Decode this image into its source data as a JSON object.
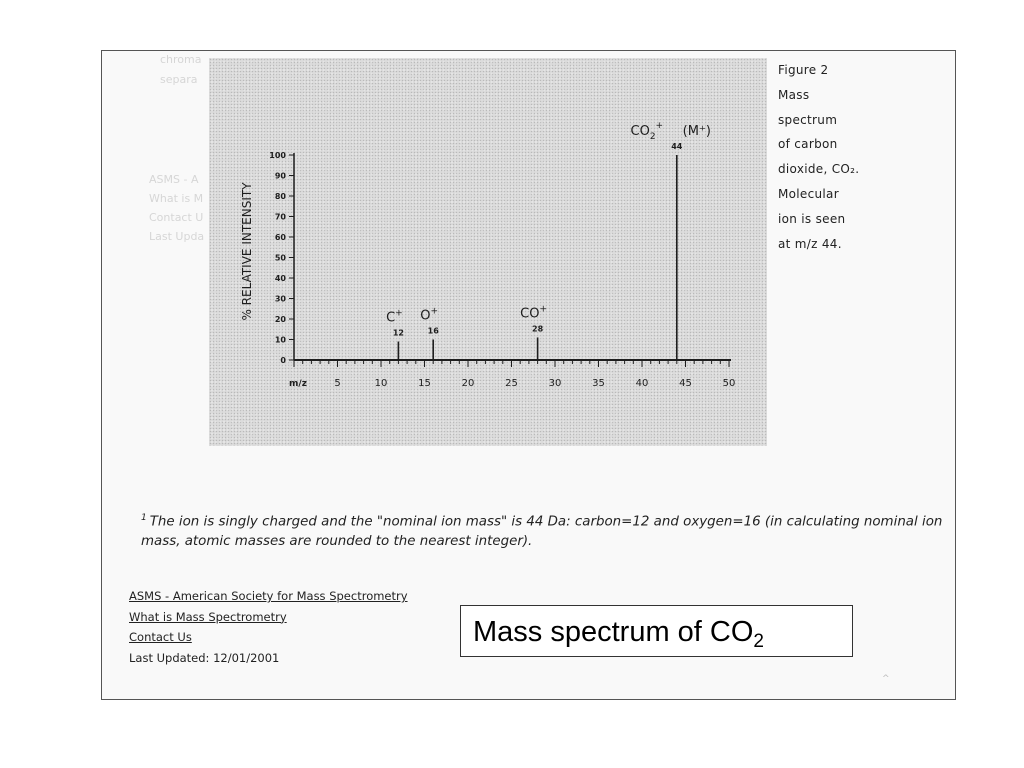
{
  "bleed_text": {
    "top_lines": [
      "chroma",
      "separa"
    ],
    "left_lines": [
      "ASMS - A",
      "What is M",
      "Contact U",
      "Last Upda"
    ]
  },
  "chart_data": {
    "type": "bar",
    "title": "",
    "xlabel": "m/z",
    "ylabel": "% RELATIVE INTENSITY",
    "xlim": [
      0,
      50
    ],
    "ylim": [
      0,
      100
    ],
    "x_ticks": [
      5,
      10,
      15,
      20,
      25,
      30,
      35,
      40,
      45,
      50
    ],
    "y_ticks": [
      0,
      10,
      20,
      30,
      40,
      50,
      60,
      70,
      80,
      90,
      100
    ],
    "peaks": [
      {
        "mz": 12,
        "intensity": 9,
        "ion": "C",
        "charge": "+",
        "mass_label": "12"
      },
      {
        "mz": 16,
        "intensity": 10,
        "ion": "O",
        "charge": "+",
        "mass_label": "16"
      },
      {
        "mz": 28,
        "intensity": 11,
        "ion": "CO",
        "charge": "+",
        "mass_label": "28"
      },
      {
        "mz": 44,
        "intensity": 100,
        "ion": "CO2",
        "charge": "+",
        "mass_label": "44",
        "annotation": "(M⁺)"
      }
    ],
    "grid": false,
    "colors": {
      "line": "#1e1e1e",
      "background": "#dcdcdc"
    }
  },
  "caption": {
    "lines": [
      "Figure 2",
      "Mass",
      "spectrum",
      "of carbon",
      "dioxide, CO₂.",
      "Molecular",
      "ion is seen",
      "at  m/z 44."
    ]
  },
  "footnote": {
    "marker": "1",
    "text": "The ion is singly charged and the \"nominal ion mass\" is 44 Da: carbon=12 and oxygen=16 (in calculating nominal ion mass, atomic masses are rounded to the nearest integer)."
  },
  "links": {
    "asms": "ASMS - American Society for Mass Spectrometry",
    "what_is": "What is Mass Spectrometry",
    "contact": "Contact Us",
    "last_updated": "Last Updated: 12/01/2001"
  },
  "slide_title": {
    "main": "Mass spectrum of CO",
    "subscript": "2"
  }
}
